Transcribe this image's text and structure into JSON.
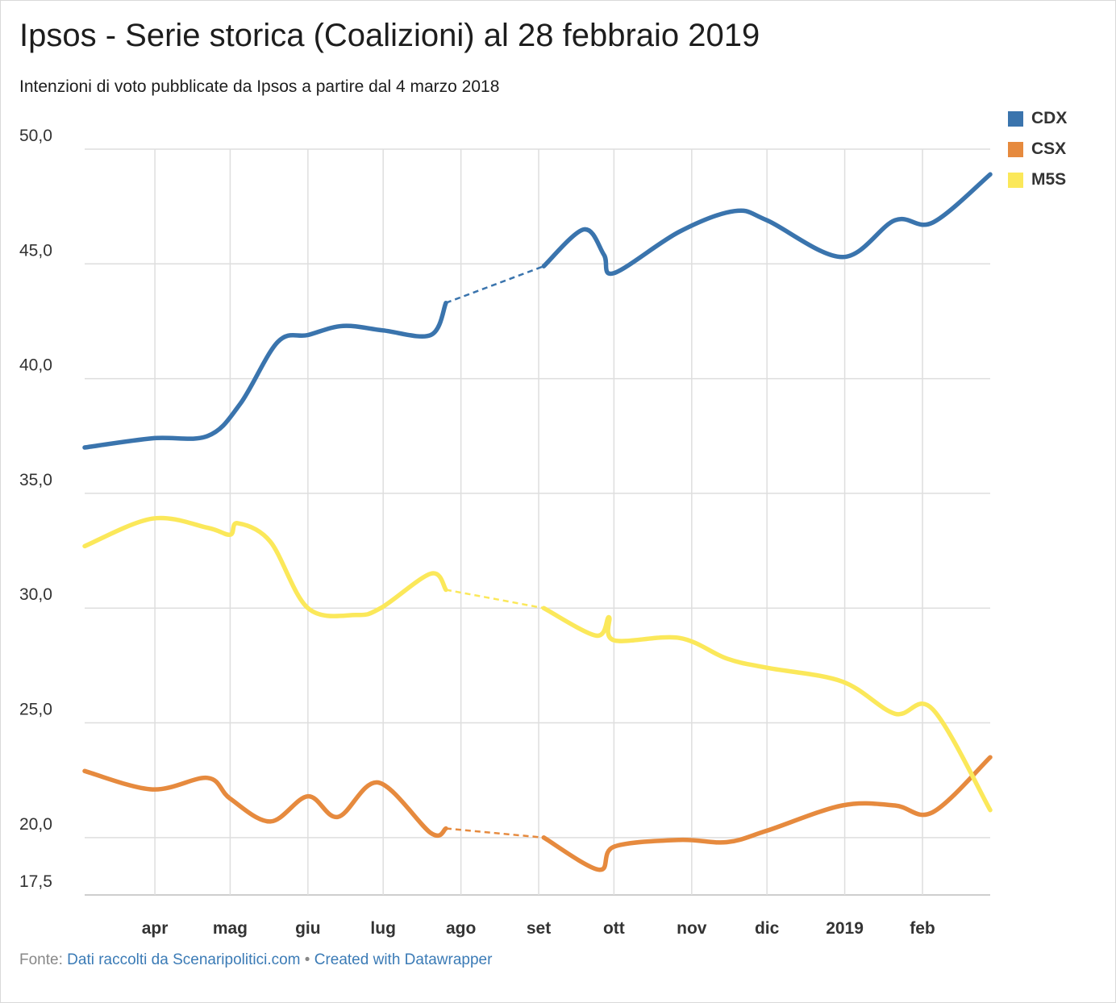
{
  "title": "Ipsos - Serie storica (Coalizioni) al 28 febbraio 2019",
  "subtitle": "Intenzioni di voto pubblicate da Ipsos a partire dal 4 marzo 2018",
  "footer": {
    "prefix": "Fonte:",
    "source_link": "Dati raccolti da Scenaripolitici.com",
    "separator": "•",
    "credit_link": "Created with Datawrapper"
  },
  "chart_data": {
    "type": "line",
    "title": "Ipsos - Serie storica (Coalizioni) al 28 febbraio 2019",
    "xlabel": "",
    "ylabel": "",
    "ylim": [
      17.5,
      50
    ],
    "xlim": [
      "2018-03-04",
      "2019-02-28"
    ],
    "y_ticks": [
      "50,0",
      "45,0",
      "40,0",
      "35,0",
      "30,0",
      "25,0",
      "20,0",
      "17,5"
    ],
    "y_tick_values": [
      50,
      45,
      40,
      35,
      30,
      25,
      20,
      17.5
    ],
    "x_ticks": [
      {
        "label": "apr",
        "date": "2018-04-01"
      },
      {
        "label": "mag",
        "date": "2018-05-01"
      },
      {
        "label": "giu",
        "date": "2018-06-01"
      },
      {
        "label": "lug",
        "date": "2018-07-01"
      },
      {
        "label": "ago",
        "date": "2018-08-01"
      },
      {
        "label": "set",
        "date": "2018-09-01"
      },
      {
        "label": "ott",
        "date": "2018-10-01"
      },
      {
        "label": "nov",
        "date": "2018-11-01"
      },
      {
        "label": "dic",
        "date": "2018-12-01"
      },
      {
        "label": "2019",
        "date": "2019-01-01"
      },
      {
        "label": "feb",
        "date": "2019-02-01"
      }
    ],
    "grid": true,
    "legend_position": "top-right",
    "gap": {
      "from": "2018-07-26",
      "to": "2018-09-03",
      "style": "dashed"
    },
    "series": [
      {
        "name": "CDX",
        "color": "#3a74ad",
        "points": [
          [
            "2018-03-04",
            37.0
          ],
          [
            "2018-03-31",
            37.4
          ],
          [
            "2018-04-22",
            37.5
          ],
          [
            "2018-05-05",
            38.9
          ],
          [
            "2018-05-20",
            41.6
          ],
          [
            "2018-06-01",
            41.9
          ],
          [
            "2018-06-15",
            42.3
          ],
          [
            "2018-07-01",
            42.1
          ],
          [
            "2018-07-20",
            41.9
          ],
          [
            "2018-07-26",
            43.3
          ],
          [
            "2018-09-03",
            44.9
          ],
          [
            "2018-09-19",
            46.5
          ],
          [
            "2018-09-27",
            45.4
          ],
          [
            "2018-10-01",
            44.6
          ],
          [
            "2018-10-27",
            46.4
          ],
          [
            "2018-11-18",
            47.3
          ],
          [
            "2018-12-01",
            46.9
          ],
          [
            "2018-12-31",
            45.3
          ],
          [
            "2019-01-21",
            46.9
          ],
          [
            "2019-02-05",
            46.8
          ],
          [
            "2019-02-28",
            48.9
          ]
        ]
      },
      {
        "name": "CSX",
        "color": "#e68a3e",
        "points": [
          [
            "2018-03-04",
            22.9
          ],
          [
            "2018-03-31",
            22.1
          ],
          [
            "2018-04-22",
            22.6
          ],
          [
            "2018-05-01",
            21.7
          ],
          [
            "2018-05-17",
            20.7
          ],
          [
            "2018-06-01",
            21.8
          ],
          [
            "2018-06-13",
            20.9
          ],
          [
            "2018-06-29",
            22.4
          ],
          [
            "2018-07-20",
            20.2
          ],
          [
            "2018-07-26",
            20.4
          ],
          [
            "2018-09-03",
            20.0
          ],
          [
            "2018-09-25",
            18.6
          ],
          [
            "2018-10-01",
            19.6
          ],
          [
            "2018-10-27",
            19.9
          ],
          [
            "2018-11-15",
            19.8
          ],
          [
            "2018-12-01",
            20.3
          ],
          [
            "2018-12-31",
            21.4
          ],
          [
            "2019-01-21",
            21.4
          ],
          [
            "2019-02-05",
            21.1
          ],
          [
            "2019-02-28",
            23.5
          ]
        ]
      },
      {
        "name": "M5S",
        "color": "#fbe85a",
        "points": [
          [
            "2018-03-04",
            32.7
          ],
          [
            "2018-03-31",
            33.9
          ],
          [
            "2018-04-22",
            33.5
          ],
          [
            "2018-05-01",
            33.2
          ],
          [
            "2018-05-04",
            33.7
          ],
          [
            "2018-05-17",
            32.9
          ],
          [
            "2018-06-01",
            30.0
          ],
          [
            "2018-06-20",
            29.7
          ],
          [
            "2018-06-30",
            30.0
          ],
          [
            "2018-07-20",
            31.5
          ],
          [
            "2018-07-26",
            30.8
          ],
          [
            "2018-09-03",
            30.0
          ],
          [
            "2018-09-24",
            28.8
          ],
          [
            "2018-09-29",
            29.6
          ],
          [
            "2018-10-01",
            28.6
          ],
          [
            "2018-10-27",
            28.7
          ],
          [
            "2018-11-15",
            27.8
          ],
          [
            "2018-12-01",
            27.4
          ],
          [
            "2018-12-31",
            26.8
          ],
          [
            "2019-01-21",
            25.4
          ],
          [
            "2019-02-05",
            25.6
          ],
          [
            "2019-02-28",
            21.2
          ]
        ]
      }
    ]
  }
}
